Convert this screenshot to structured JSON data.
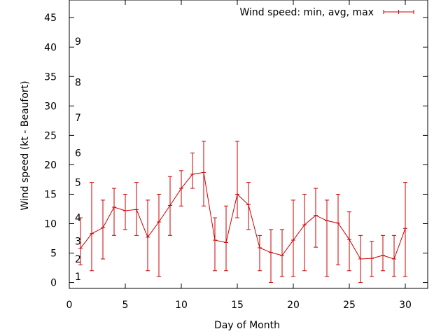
{
  "chart_data": {
    "type": "line",
    "xlabel": "Day of Month",
    "ylabel": "Wind speed (kt - Beaufort)",
    "xlim": [
      0,
      32
    ],
    "ylim": [
      -1,
      48
    ],
    "xticks": [
      0,
      5,
      10,
      15,
      20,
      25,
      30
    ],
    "yticks": [
      0,
      5,
      10,
      15,
      20,
      25,
      30,
      35,
      40,
      45
    ],
    "grid": false,
    "legend_position": "top-right",
    "beaufort_labels": [
      {
        "label": "1",
        "value": 1
      },
      {
        "label": "2",
        "value": 4
      },
      {
        "label": "3",
        "value": 7
      },
      {
        "label": "4",
        "value": 11
      },
      {
        "label": "5",
        "value": 17
      },
      {
        "label": "6",
        "value": 22
      },
      {
        "label": "7",
        "value": 28
      },
      {
        "label": "8",
        "value": 34
      },
      {
        "label": "9",
        "value": 41
      }
    ],
    "series": [
      {
        "name": "Wind speed: min, avg, max",
        "color": "#cc0000",
        "x": [
          1,
          2,
          3,
          4,
          5,
          6,
          7,
          8,
          9,
          10,
          11,
          12,
          13,
          14,
          15,
          16,
          17,
          18,
          19,
          20,
          21,
          22,
          23,
          24,
          25,
          26,
          27,
          28,
          29,
          30
        ],
        "avg": [
          5.8,
          8.3,
          9.3,
          12.8,
          12.2,
          12.4,
          7.7,
          10.3,
          13.1,
          16.0,
          18.4,
          18.7,
          7.2,
          6.8,
          15.0,
          13.2,
          5.9,
          5.1,
          4.6,
          7.2,
          9.8,
          11.4,
          10.5,
          10.1,
          7.3,
          4.0,
          4.1,
          4.6,
          4.0,
          9.2
        ],
        "min": [
          3.0,
          2.0,
          4.0,
          8.0,
          9.0,
          8.0,
          2.0,
          1.0,
          8.0,
          13.0,
          16.0,
          13.0,
          2.0,
          2.0,
          11.0,
          9.0,
          2.0,
          0.0,
          1.0,
          1.0,
          2.0,
          6.0,
          1.0,
          3.0,
          2.0,
          0.0,
          1.0,
          2.0,
          1.0,
          1.0
        ],
        "max": [
          11.0,
          17.0,
          14.0,
          16.0,
          15.0,
          17.0,
          14.0,
          15.0,
          18.0,
          19.0,
          22.0,
          24.0,
          11.0,
          13.0,
          24.0,
          17.0,
          8.0,
          9.0,
          9.0,
          14.0,
          15.0,
          16.0,
          14.0,
          15.0,
          12.0,
          8.0,
          7.0,
          8.0,
          8.0,
          17.0
        ]
      }
    ]
  }
}
